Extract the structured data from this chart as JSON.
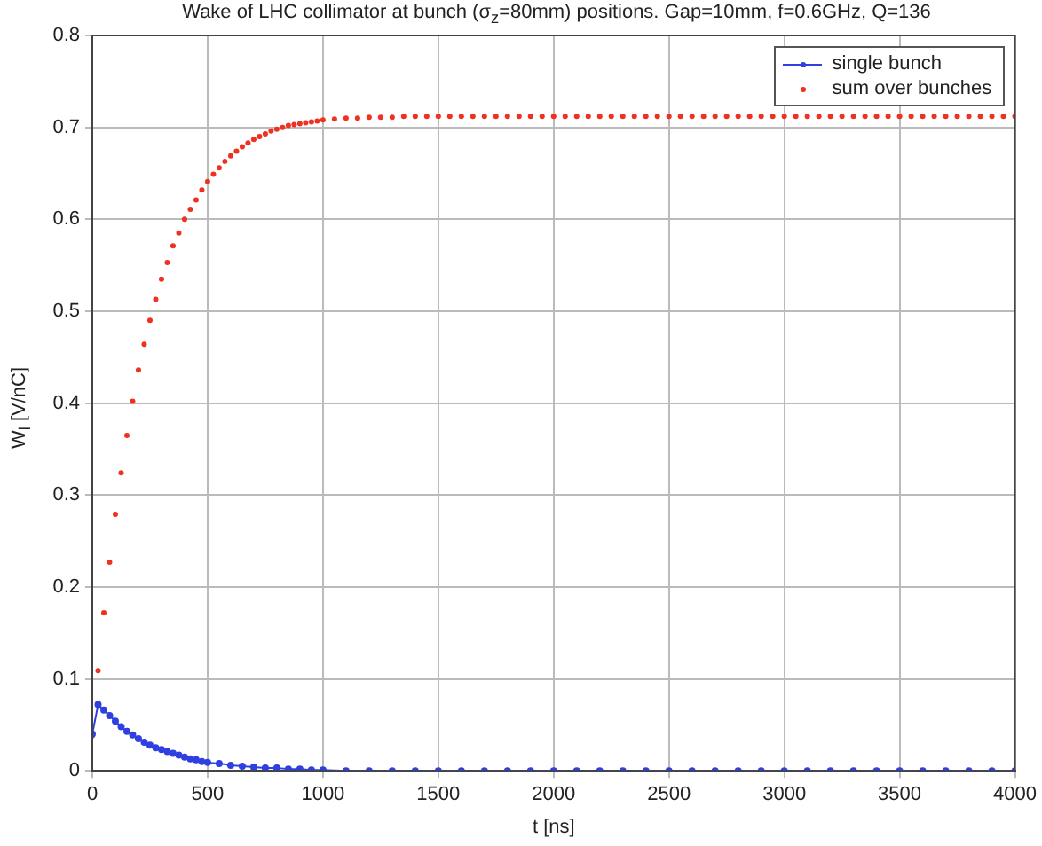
{
  "chart_data": {
    "type": "line",
    "title": "Wake of LHC collimator at bunch (σ$_{z}$=80mm) positions. Gap=10mm, f=0.6GHz, Q=136",
    "xlabel": "t [ns]",
    "ylabel": "W$_{l}$ [V/nC]",
    "xlim": [
      0,
      4000
    ],
    "xticks": [
      0,
      500,
      1000,
      1500,
      2000,
      2500,
      3000,
      3500,
      4000
    ],
    "ylim": [
      0,
      0.8
    ],
    "yticks": [
      0,
      0.1,
      0.2,
      0.3,
      0.4,
      0.5,
      0.6,
      0.7,
      0.8
    ],
    "grid": true,
    "legend": "top right",
    "series": [
      {
        "name": "single bunch",
        "type": "line",
        "marker": "circle",
        "line_style": "solid",
        "color": "#3040e0",
        "x": [
          0,
          25,
          50,
          75,
          100,
          125,
          150,
          175,
          200,
          225,
          250,
          275,
          300,
          325,
          350,
          375,
          400,
          425,
          450,
          475,
          500,
          550,
          600,
          650,
          700,
          750,
          800,
          850,
          900,
          950,
          1000,
          1100,
          1200,
          1300,
          1400,
          1500,
          1600,
          1700,
          1800,
          1900,
          2000,
          2100,
          2200,
          2300,
          2400,
          2500,
          2600,
          2700,
          2800,
          2900,
          3000,
          3100,
          3200,
          3300,
          3400,
          3500,
          3600,
          3700,
          3800,
          3900,
          4000
        ],
        "values": [
          0.04,
          0.072,
          0.066,
          0.06,
          0.054,
          0.048,
          0.043,
          0.039,
          0.035,
          0.031,
          0.028,
          0.025,
          0.023,
          0.021,
          0.019,
          0.017,
          0.015,
          0.013,
          0.012,
          0.01,
          0.009,
          0.008,
          0.006,
          0.005,
          0.004,
          0.003,
          0.003,
          0.002,
          0.002,
          0.001,
          0.001,
          0,
          0,
          0,
          0,
          0,
          0,
          0,
          0,
          0,
          0,
          0,
          0,
          0,
          0,
          0,
          0,
          0,
          0,
          0,
          0,
          0,
          0,
          0,
          0,
          0,
          0,
          0,
          0,
          0,
          0
        ]
      },
      {
        "name": "sum over bunches",
        "type": "scatter",
        "marker": "circle",
        "color": "#f03020",
        "x": [
          0,
          25,
          50,
          75,
          100,
          125,
          150,
          175,
          200,
          225,
          250,
          275,
          300,
          325,
          350,
          375,
          400,
          425,
          450,
          475,
          500,
          525,
          550,
          575,
          600,
          625,
          650,
          675,
          700,
          725,
          750,
          775,
          800,
          825,
          850,
          875,
          900,
          925,
          950,
          975,
          1000,
          1050,
          1100,
          1150,
          1200,
          1250,
          1300,
          1350,
          1400,
          1450,
          1500,
          1550,
          1600,
          1650,
          1700,
          1750,
          1800,
          1850,
          1900,
          1950,
          2000,
          2050,
          2100,
          2150,
          2200,
          2250,
          2300,
          2350,
          2400,
          2450,
          2500,
          2550,
          2600,
          2650,
          2700,
          2750,
          2800,
          2850,
          2900,
          2950,
          3000,
          3050,
          3100,
          3150,
          3200,
          3250,
          3300,
          3350,
          3400,
          3450,
          3500,
          3550,
          3600,
          3650,
          3700,
          3750,
          3800,
          3850,
          3900,
          3950,
          4000
        ],
        "values": [
          0.038,
          0.109,
          0.172,
          0.227,
          0.279,
          0.324,
          0.365,
          0.402,
          0.436,
          0.464,
          0.49,
          0.513,
          0.535,
          0.553,
          0.571,
          0.585,
          0.6,
          0.611,
          0.621,
          0.632,
          0.641,
          0.649,
          0.656,
          0.663,
          0.669,
          0.674,
          0.679,
          0.683,
          0.687,
          0.69,
          0.693,
          0.696,
          0.698,
          0.7,
          0.702,
          0.703,
          0.704,
          0.705,
          0.706,
          0.707,
          0.708,
          0.709,
          0.71,
          0.71,
          0.711,
          0.711,
          0.711,
          0.712,
          0.712,
          0.712,
          0.712,
          0.712,
          0.712,
          0.712,
          0.712,
          0.712,
          0.712,
          0.712,
          0.712,
          0.712,
          0.712,
          0.712,
          0.712,
          0.712,
          0.712,
          0.712,
          0.712,
          0.712,
          0.712,
          0.712,
          0.712,
          0.712,
          0.712,
          0.712,
          0.712,
          0.712,
          0.712,
          0.712,
          0.712,
          0.712,
          0.712,
          0.712,
          0.712,
          0.712,
          0.712,
          0.712,
          0.712,
          0.712,
          0.712,
          0.712,
          0.712,
          0.712,
          0.712,
          0.712,
          0.712,
          0.712,
          0.712,
          0.712,
          0.712,
          0.712,
          0.712
        ]
      }
    ]
  }
}
